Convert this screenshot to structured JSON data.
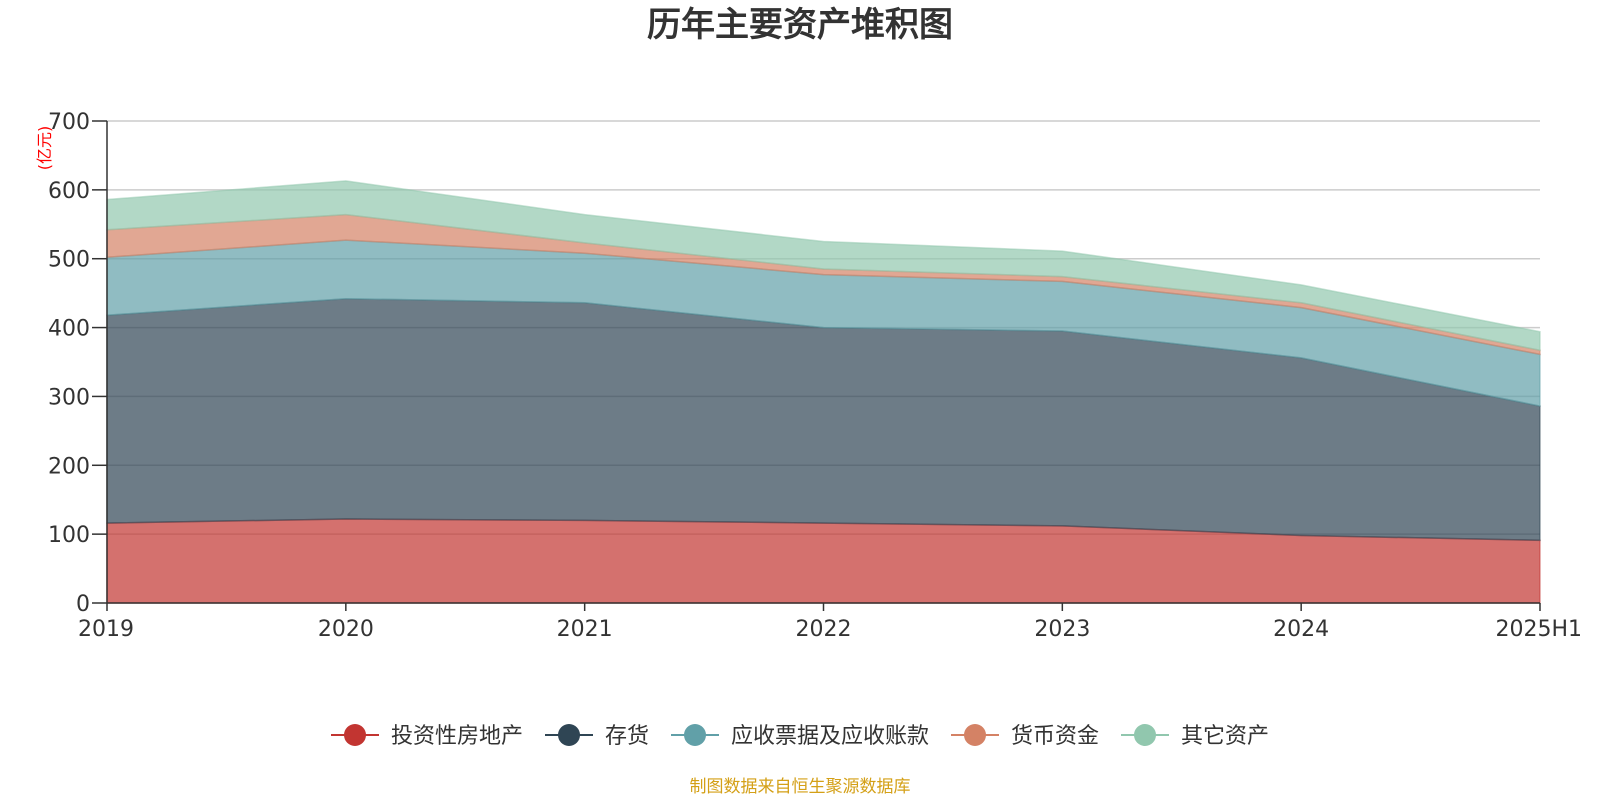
{
  "chart_data": {
    "type": "area",
    "stacked": true,
    "title": "历年主要资产堆积图",
    "ylabel": "(亿元)",
    "xlabel": "",
    "ylim": [
      0,
      700
    ],
    "yticks": [
      0,
      100,
      200,
      300,
      400,
      500,
      600,
      700
    ],
    "categories": [
      "2019",
      "2020",
      "2021",
      "2022",
      "2023",
      "2024",
      "2025H1"
    ],
    "grid": true,
    "legend_position": "bottom",
    "series": [
      {
        "name": "投资性房地产",
        "color": "#c23531",
        "values": [
          116,
          122,
          120,
          116,
          112,
          98,
          91
        ]
      },
      {
        "name": "存货",
        "color": "#2f4554",
        "values": [
          302,
          320,
          316,
          284,
          283,
          258,
          195
        ]
      },
      {
        "name": "应收票据及应收账款",
        "color": "#61a0a8",
        "values": [
          84,
          85,
          72,
          77,
          72,
          73,
          75
        ]
      },
      {
        "name": "货币资金",
        "color": "#d48265",
        "values": [
          40,
          37,
          15,
          8,
          7,
          7,
          6
        ]
      },
      {
        "name": "其它资产",
        "color": "#91c7ae",
        "values": [
          44,
          49,
          41,
          40,
          37,
          26,
          27
        ]
      }
    ]
  },
  "footer": {
    "source": "制图数据来自恒生聚源数据库"
  },
  "colors": {
    "title": "#333333",
    "axis": "#333333",
    "grid": "#cccccc",
    "unit": "#ff0000",
    "source": "#d4a017"
  }
}
